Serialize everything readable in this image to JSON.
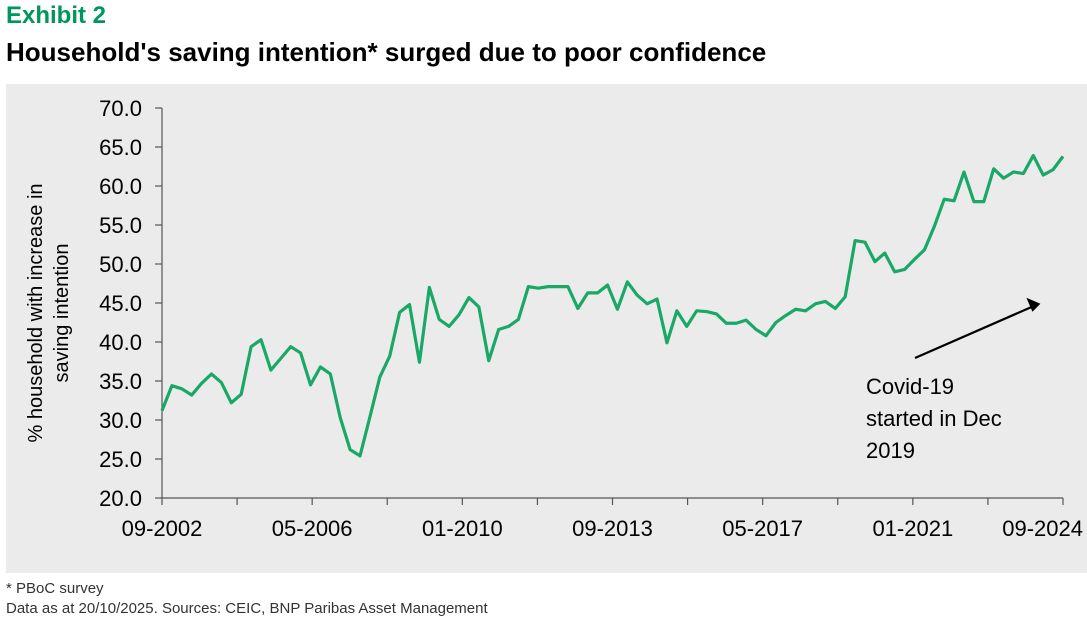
{
  "header": {
    "exhibit": "Exhibit 2",
    "title": "Household's saving intention* surged due to poor confidence"
  },
  "footer": {
    "note": "* PBoC survey",
    "source": "Data as at 20/10/2025. Sources: CEIC, BNP Paribas Asset Management"
  },
  "colors": {
    "accent": "#00965e",
    "line": "#1aa866",
    "plot_background": "#ebebeb"
  },
  "chart_data": {
    "type": "line",
    "title": "Household's saving intention* surged due to poor confidence",
    "ylabel": [
      "% household with increase in",
      "saving intention"
    ],
    "xlabel": "",
    "ylim": [
      20,
      70
    ],
    "y_ticks": [
      "20.0",
      "25.0",
      "30.0",
      "35.0",
      "40.0",
      "45.0",
      "50.0",
      "55.0",
      "60.0",
      "65.0",
      "70.0"
    ],
    "x_ticks": [
      "09-2002",
      "05-2006",
      "01-2010",
      "09-2013",
      "05-2017",
      "01-2021",
      "09-2024"
    ],
    "grid": false,
    "legend": "none",
    "annotation": {
      "text": [
        "Covid-19",
        "started in Dec",
        "2019"
      ],
      "x_index": 87,
      "y_value": 45.8
    },
    "series": [
      {
        "values": [
          31.2,
          34.4,
          34.0,
          33.2,
          34.7,
          35.9,
          34.8,
          32.2,
          33.3,
          39.4,
          40.3,
          36.4,
          37.9,
          39.4,
          38.6,
          34.5,
          36.8,
          35.9,
          30.3,
          26.2,
          25.4,
          30.4,
          35.5,
          38.2,
          43.8,
          44.8,
          37.4,
          47.0,
          42.9,
          42.0,
          43.5,
          45.7,
          44.5,
          37.6,
          41.6,
          42.0,
          42.9,
          47.1,
          46.9,
          47.1,
          47.1,
          47.1,
          44.3,
          46.3,
          46.3,
          47.3,
          44.2,
          47.7,
          46.0,
          44.9,
          45.5,
          39.9,
          44.0,
          42.0,
          44.0,
          43.9,
          43.6,
          42.4,
          42.4,
          42.8,
          41.6,
          40.8,
          42.5,
          43.4,
          44.2,
          44.0,
          44.9,
          45.2,
          44.3,
          45.8,
          53.0,
          52.8,
          50.3,
          51.4,
          49.0,
          49.3,
          50.6,
          51.8,
          54.8,
          58.3,
          58.1,
          61.8,
          58.0,
          58.0,
          62.2,
          61.0,
          61.8,
          61.6,
          63.9,
          61.4,
          62.1,
          63.8
        ]
      }
    ]
  }
}
